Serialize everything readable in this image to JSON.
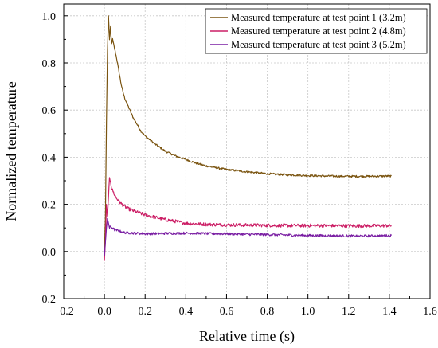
{
  "chart_data": {
    "type": "line",
    "xlabel": "Relative time (s)",
    "ylabel": "Normalized temperature",
    "xlim": [
      -0.2,
      1.6
    ],
    "ylim": [
      -0.2,
      1.05
    ],
    "xticks": [
      -0.2,
      0.0,
      0.2,
      0.4,
      0.6,
      0.8,
      1.0,
      1.2,
      1.4,
      1.6
    ],
    "yticks": [
      -0.2,
      0.0,
      0.2,
      0.4,
      0.6,
      0.8,
      1.0
    ],
    "xtick_labels": [
      "−0.2",
      "0.0",
      "0.2",
      "0.4",
      "0.6",
      "0.8",
      "1.0",
      "1.2",
      "1.4",
      "1.6"
    ],
    "ytick_labels": [
      "−0.2",
      "0.0",
      "0.2",
      "0.4",
      "0.6",
      "0.8",
      "1.0"
    ],
    "grid": true,
    "legend_position": "top-right",
    "series": [
      {
        "name": "Measured temperature at test point 1 (3.2m)",
        "color": "#7a5410",
        "noise": 0.004,
        "x": [
          0.0,
          0.005,
          0.01,
          0.015,
          0.02,
          0.025,
          0.03,
          0.035,
          0.04,
          0.05,
          0.06,
          0.07,
          0.08,
          0.09,
          0.1,
          0.12,
          0.14,
          0.16,
          0.18,
          0.2,
          0.25,
          0.3,
          0.35,
          0.4,
          0.45,
          0.5,
          0.55,
          0.6,
          0.7,
          0.8,
          0.9,
          1.0,
          1.1,
          1.2,
          1.3,
          1.41
        ],
        "y": [
          0.0,
          0.15,
          0.55,
          0.85,
          1.0,
          0.9,
          0.95,
          0.88,
          0.9,
          0.86,
          0.82,
          0.77,
          0.72,
          0.68,
          0.65,
          0.61,
          0.57,
          0.54,
          0.51,
          0.49,
          0.455,
          0.425,
          0.405,
          0.39,
          0.375,
          0.363,
          0.355,
          0.348,
          0.338,
          0.33,
          0.325,
          0.322,
          0.32,
          0.319,
          0.319,
          0.32
        ]
      },
      {
        "name": "Measured temperature at test point 2 (4.8m)",
        "color": "#cc1f66",
        "noise": 0.007,
        "x": [
          0.0,
          0.005,
          0.01,
          0.015,
          0.02,
          0.025,
          0.03,
          0.035,
          0.04,
          0.05,
          0.06,
          0.08,
          0.1,
          0.12,
          0.15,
          0.2,
          0.25,
          0.3,
          0.35,
          0.4,
          0.5,
          0.6,
          0.7,
          0.8,
          0.9,
          1.0,
          1.1,
          1.2,
          1.3,
          1.41
        ],
        "y": [
          -0.04,
          0.05,
          0.2,
          0.15,
          0.23,
          0.31,
          0.3,
          0.27,
          0.26,
          0.24,
          0.225,
          0.205,
          0.19,
          0.18,
          0.17,
          0.155,
          0.145,
          0.135,
          0.128,
          0.12,
          0.115,
          0.113,
          0.112,
          0.111,
          0.11,
          0.11,
          0.11,
          0.109,
          0.109,
          0.11
        ]
      },
      {
        "name": "Measured temperature at test point 3 (5.2m)",
        "color": "#7a1fa3",
        "noise": 0.005,
        "x": [
          0.0,
          0.005,
          0.01,
          0.015,
          0.02,
          0.025,
          0.03,
          0.04,
          0.05,
          0.06,
          0.08,
          0.1,
          0.15,
          0.2,
          0.3,
          0.4,
          0.5,
          0.6,
          0.7,
          0.8,
          0.9,
          1.0,
          1.1,
          1.2,
          1.3,
          1.41
        ],
        "y": [
          -0.02,
          0.04,
          0.1,
          0.14,
          0.12,
          0.1,
          0.105,
          0.1,
          0.092,
          0.09,
          0.085,
          0.08,
          0.078,
          0.075,
          0.077,
          0.078,
          0.076,
          0.075,
          0.073,
          0.072,
          0.07,
          0.068,
          0.067,
          0.066,
          0.066,
          0.068
        ]
      }
    ]
  }
}
